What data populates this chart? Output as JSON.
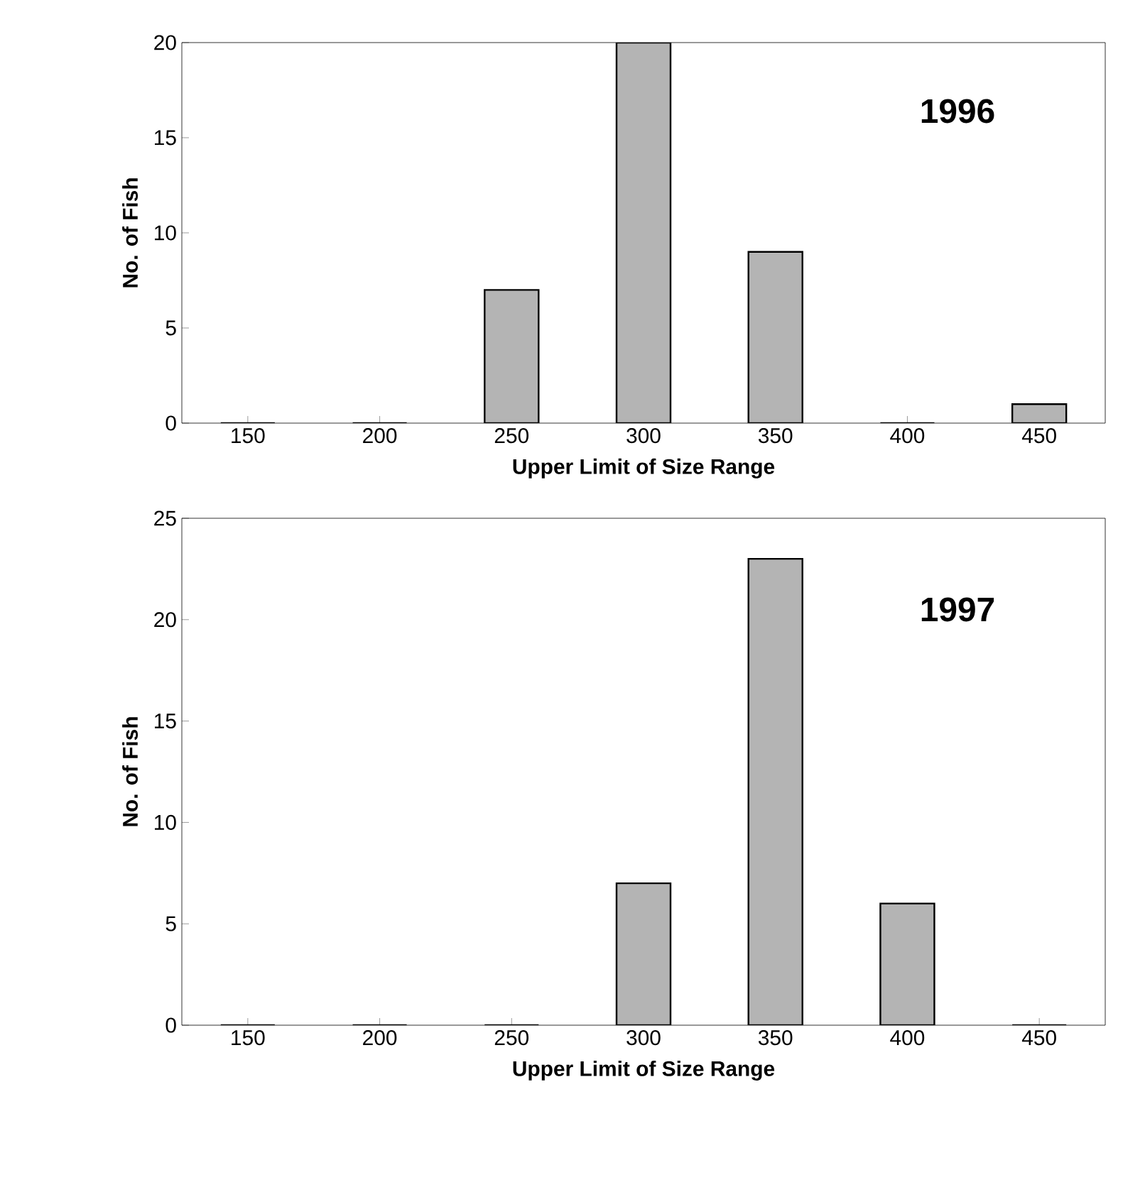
{
  "chart_data": [
    {
      "type": "bar",
      "title": "1996",
      "xlabel": "Upper Limit of Size Range",
      "ylabel": "No. of Fish",
      "categories": [
        "150",
        "200",
        "250",
        "300",
        "350",
        "400",
        "450"
      ],
      "values": [
        0,
        0,
        7,
        20,
        9,
        0,
        1
      ],
      "color": "#b4b4b4",
      "ylim": [
        0,
        20
      ],
      "yticks": [
        0,
        5,
        10,
        15,
        20
      ],
      "grid": false
    },
    {
      "type": "bar",
      "title": "1997",
      "xlabel": "Upper Limit of Size Range",
      "ylabel": "No. of Fish",
      "categories": [
        "150",
        "200",
        "250",
        "300",
        "350",
        "400",
        "450"
      ],
      "values": [
        0,
        0,
        0,
        7,
        23,
        6,
        0
      ],
      "color": "#b4b4b4",
      "ylim": [
        0,
        25
      ],
      "yticks": [
        0,
        5,
        10,
        15,
        20,
        25
      ],
      "grid": false
    }
  ]
}
